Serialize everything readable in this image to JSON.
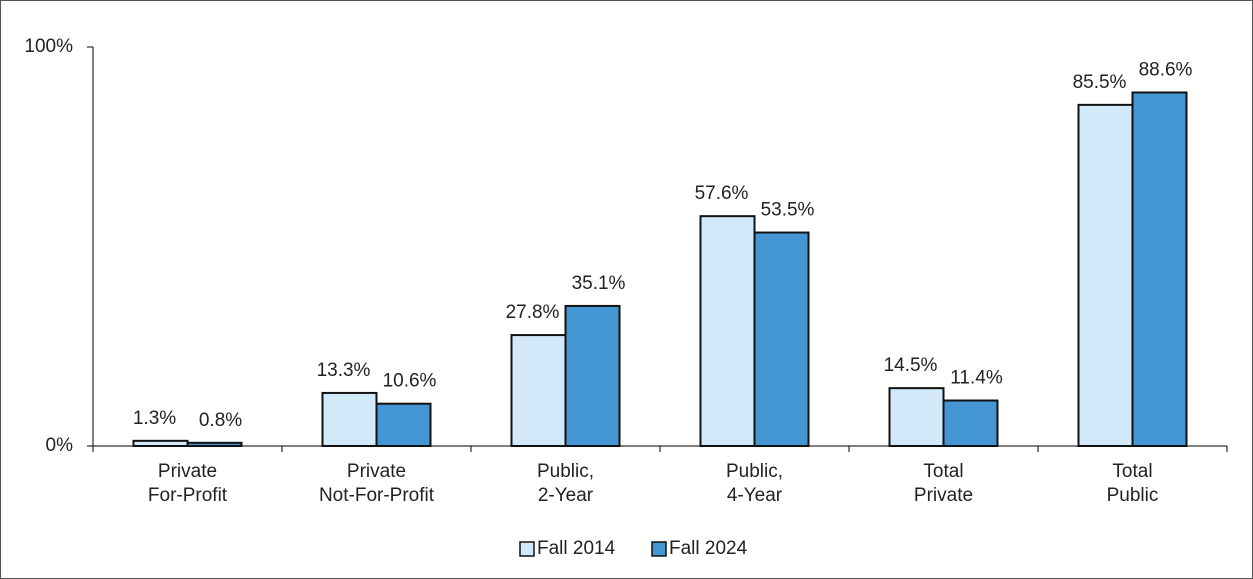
{
  "chart_data": {
    "type": "bar",
    "categories": [
      "Private\nFor-Profit",
      "Private\nNot-For-Profit",
      "Public,\n2-Year",
      "Public,\n4-Year",
      "Total\nPrivate",
      "Total\nPublic"
    ],
    "series": [
      {
        "name": "Fall 2014",
        "color": "#d2e9f9",
        "values": [
          1.3,
          13.3,
          27.8,
          57.6,
          14.5,
          85.5
        ],
        "value_labels": [
          "1.3%",
          "13.3%",
          "27.8%",
          "57.6%",
          "14.5%",
          "85.5%"
        ]
      },
      {
        "name": "Fall 2024",
        "color": "#4396d2",
        "values": [
          0.8,
          10.6,
          35.1,
          53.5,
          11.4,
          88.6
        ],
        "value_labels": [
          "0.8%",
          "10.6%",
          "35.1%",
          "53.5%",
          "11.4%",
          "88.6%"
        ]
      }
    ],
    "ylim": [
      0,
      100
    ],
    "yticks": [
      {
        "value": 0,
        "label": "0%"
      },
      {
        "value": 100,
        "label": "100%"
      }
    ],
    "legend": "bottom"
  }
}
